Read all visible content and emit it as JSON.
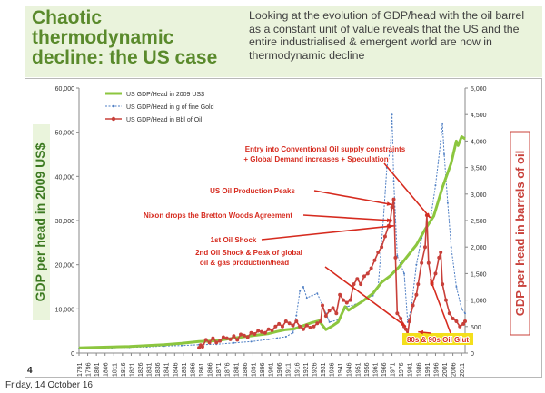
{
  "slide": {
    "title": "Chaotic thermodynamic decline: the US case",
    "subtitle": "Looking at the evolution of GDP/head with the oil barrel as a constant unit of value reveals that the US and the entire industrialised & emergent world are now in thermodynamic decline",
    "page_number": "4",
    "footer_date": "Friday, 14 October 16"
  },
  "colors": {
    "title": "#5a8a2c",
    "header_band": "#eaf3dc",
    "gdp_usd": "#8cc63f",
    "gdp_gold": "#4f7fc4",
    "gdp_oil": "#c8403a",
    "annotation": "#d62b1f",
    "glut_label_bg": "#f4df1c",
    "axis_label_left_bg": "#eaf4dc",
    "axis_label_left_fg": "#3d7a22",
    "axis_label_right_fg": "#c8403a"
  },
  "chart_data": {
    "type": "line",
    "ylabel": "GDP per head in 2009 US$",
    "y2label": "GDP per head in barrels of oil",
    "ylim": [
      0,
      60000
    ],
    "y2lim": [
      0,
      5000
    ],
    "xlim": [
      1791,
      2013
    ],
    "y_ticks": [
      "0",
      "10,000",
      "20,000",
      "30,000",
      "40,000",
      "50,000",
      "60,000"
    ],
    "y2_ticks": [
      "0",
      "500",
      "1,000",
      "1,500",
      "2,000",
      "2,500",
      "3,000",
      "3,500",
      "4,000",
      "4,500",
      "5,000"
    ],
    "x_ticks": [
      "1791",
      "1796",
      "1801",
      "1806",
      "1811",
      "1816",
      "1821",
      "1826",
      "1831",
      "1836",
      "1841",
      "1846",
      "1851",
      "1856",
      "1861",
      "1866",
      "1871",
      "1876",
      "1881",
      "1886",
      "1891",
      "1896",
      "1901",
      "1906",
      "1911",
      "1916",
      "1921",
      "1926",
      "1931",
      "1936",
      "1941",
      "1946",
      "1951",
      "1956",
      "1961",
      "1966",
      "1971",
      "1976",
      "1981",
      "1986",
      "1991",
      "1996",
      "2001",
      "2006",
      "2011"
    ],
    "legend": [
      "US GDP/Head in 2009 US$",
      "US GDP/Head in g of fine Gold",
      "US GDP/Head in Bbl of Oil"
    ],
    "series": [
      {
        "name": "US GDP/Head in 2009 US$",
        "axis": "left",
        "x": [
          1791,
          1800,
          1810,
          1820,
          1830,
          1840,
          1850,
          1860,
          1865,
          1870,
          1880,
          1890,
          1900,
          1905,
          1910,
          1915,
          1920,
          1925,
          1929,
          1933,
          1937,
          1940,
          1944,
          1946,
          1950,
          1955,
          1960,
          1965,
          1970,
          1975,
          1980,
          1985,
          1990,
          1995,
          2000,
          2005,
          2008,
          2009,
          2011,
          2013
        ],
        "values": [
          1200,
          1300,
          1400,
          1500,
          1700,
          1900,
          2200,
          2600,
          2700,
          2800,
          3400,
          3900,
          4400,
          4900,
          5300,
          5500,
          6200,
          6900,
          7300,
          5300,
          6200,
          7000,
          10500,
          9700,
          10700,
          12000,
          13500,
          16000,
          17500,
          19500,
          22000,
          24500,
          28000,
          31000,
          37500,
          43000,
          48000,
          47000,
          49000,
          48500
        ]
      },
      {
        "name": "US GDP/Head in g of fine Gold",
        "axis": "left",
        "x": [
          1791,
          1800,
          1810,
          1820,
          1830,
          1840,
          1850,
          1860,
          1870,
          1880,
          1890,
          1900,
          1905,
          1910,
          1914,
          1916,
          1918,
          1920,
          1922,
          1925,
          1928,
          1933,
          1935,
          1940,
          1945,
          1950,
          1955,
          1960,
          1963,
          1966,
          1968,
          1970,
          1971,
          1972,
          1974,
          1976,
          1978,
          1980,
          1982,
          1985,
          1988,
          1990,
          1993,
          1996,
          1999,
          2000,
          2001,
          2003,
          2005,
          2008,
          2011,
          2013
        ],
        "values": [
          1000,
          1100,
          1200,
          1300,
          1400,
          1600,
          1700,
          1900,
          2000,
          2300,
          2600,
          3100,
          3400,
          3700,
          4600,
          8500,
          14000,
          15000,
          12500,
          13000,
          13500,
          9000,
          7000,
          7500,
          10500,
          11000,
          12000,
          13000,
          15000,
          30000,
          42000,
          46000,
          54000,
          39000,
          22000,
          20000,
          18000,
          7000,
          10000,
          20000,
          26000,
          28000,
          30000,
          38000,
          48000,
          52000,
          45000,
          34000,
          24000,
          15000,
          10000,
          9000
        ]
      },
      {
        "name": "US GDP/Head in Bbl of Oil",
        "axis": "right",
        "x": [
          1860,
          1861,
          1862,
          1864,
          1866,
          1868,
          1870,
          1872,
          1874,
          1876,
          1878,
          1880,
          1882,
          1884,
          1886,
          1888,
          1890,
          1892,
          1894,
          1896,
          1898,
          1900,
          1902,
          1904,
          1906,
          1908,
          1910,
          1912,
          1914,
          1916,
          1918,
          1920,
          1922,
          1924,
          1926,
          1928,
          1930,
          1931,
          1933,
          1935,
          1937,
          1939,
          1941,
          1943,
          1945,
          1947,
          1949,
          1951,
          1953,
          1955,
          1957,
          1959,
          1961,
          1963,
          1965,
          1967,
          1969,
          1970,
          1971,
          1972,
          1973,
          1974,
          1976,
          1978,
          1979,
          1980,
          1981,
          1983,
          1985,
          1986,
          1988,
          1990,
          1991,
          1992,
          1994,
          1996,
          1998,
          1999,
          2000,
          2002,
          2004,
          2006,
          2008,
          2010,
          2012,
          2013
        ],
        "values": [
          100,
          150,
          120,
          250,
          200,
          280,
          200,
          230,
          300,
          280,
          260,
          320,
          250,
          350,
          330,
          300,
          380,
          360,
          420,
          400,
          380,
          450,
          430,
          500,
          550,
          500,
          600,
          560,
          520,
          600,
          500,
          450,
          520,
          480,
          500,
          560,
          600,
          900,
          700,
          800,
          850,
          750,
          1100,
          1000,
          950,
          1000,
          1300,
          1400,
          1300,
          1450,
          1500,
          1600,
          1750,
          1900,
          2000,
          2200,
          2400,
          2500,
          2750,
          2900,
          1800,
          750,
          650,
          500,
          450,
          350,
          600,
          900,
          1100,
          1300,
          1700,
          2000,
          2600,
          1700,
          1300,
          1500,
          1800,
          1900,
          1300,
          1000,
          750,
          650,
          600,
          500,
          550,
          600
        ]
      }
    ],
    "annotations": [
      {
        "text": "Entry into Conventional Oil supply constraints",
        "arrow_to": {
          "x": 1993,
          "y": 2550
        }
      },
      {
        "text": "+ Global Demand increases + Speculation"
      },
      {
        "text": "US Oil Production Peaks",
        "arrow_to": {
          "x": 1971,
          "y": 2800
        }
      },
      {
        "text": "Nixon drops the Bretton Woods Agreement",
        "arrow_to": {
          "x": 1971,
          "y": 2500
        }
      },
      {
        "text": "1st Oil Shock",
        "arrow_to": {
          "x": 1972,
          "y": 2400
        }
      },
      {
        "text": "2nd Oil Shock & Peak of global",
        "arrow_to": {
          "x": 1979,
          "y": 500
        }
      },
      {
        "text": "oil & gas production/head"
      },
      {
        "text": "80s & 90s Oil Glut",
        "arrow_to": [
          {
            "x": 1986,
            "y": 400
          },
          {
            "x": 1993,
            "y": 1400
          }
        ]
      }
    ]
  }
}
